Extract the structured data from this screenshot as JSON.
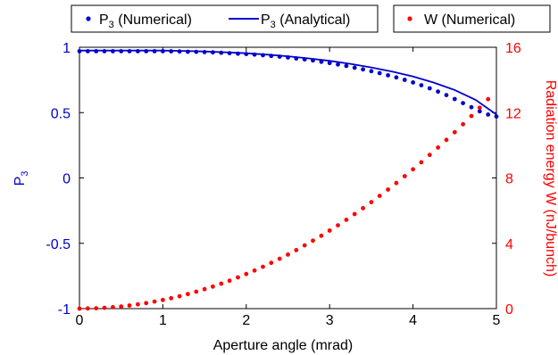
{
  "chart_data": {
    "type": "scatter",
    "xlabel": "Aperture angle (mrad)",
    "ylabel_left": "P",
    "ylabel_left_sub": "3",
    "ylabel_right": "Radiation energy W (nJ/bunch)",
    "xlim": [
      0,
      5
    ],
    "ylim_left": [
      -1,
      1
    ],
    "ylim_right": [
      0,
      16
    ],
    "x_ticks": [
      "0",
      "1",
      "2",
      "3",
      "4",
      "5"
    ],
    "y_left_ticks": [
      "-1",
      "-0.5",
      "0",
      "0.5",
      "1"
    ],
    "y_right_ticks": [
      "0",
      "4",
      "8",
      "12",
      "16"
    ],
    "grid": false,
    "colors": {
      "left_axis": "#0000cc",
      "right_axis": "#ff0000",
      "p3": "#0000cc",
      "w": "#ff0000"
    },
    "legend": [
      {
        "prefix": "P",
        "sub": "3",
        "suffix": " (Numerical)",
        "marker": "dot",
        "color": "#0000cc"
      },
      {
        "prefix": "P",
        "sub": "3",
        "suffix": " (Analytical)",
        "marker": "line",
        "color": "#0000cc"
      },
      {
        "prefix": "W (Numerical)",
        "sub": "",
        "suffix": "",
        "marker": "dot",
        "color": "#ff0000"
      }
    ],
    "series": [
      {
        "name": "P3 (Numerical)",
        "axis": "left",
        "style": "dots",
        "x": [
          0.0,
          0.1,
          0.2,
          0.3,
          0.4,
          0.5,
          0.6,
          0.7,
          0.8,
          0.9,
          1.0,
          1.1,
          1.2,
          1.3,
          1.4,
          1.5,
          1.6,
          1.7,
          1.8,
          1.9,
          2.0,
          2.1,
          2.2,
          2.3,
          2.4,
          2.5,
          2.6,
          2.7,
          2.8,
          2.9,
          3.0,
          3.1,
          3.2,
          3.3,
          3.4,
          3.5,
          3.6,
          3.7,
          3.8,
          3.9,
          4.0,
          4.1,
          4.2,
          4.3,
          4.4,
          4.5,
          4.6,
          4.7,
          4.8,
          4.9,
          5.0
        ],
        "y": [
          0.97,
          0.97,
          0.97,
          0.97,
          0.97,
          0.97,
          0.97,
          0.97,
          0.97,
          0.97,
          0.97,
          0.969,
          0.968,
          0.966,
          0.965,
          0.963,
          0.961,
          0.958,
          0.955,
          0.951,
          0.948,
          0.944,
          0.939,
          0.934,
          0.928,
          0.922,
          0.915,
          0.907,
          0.899,
          0.889,
          0.879,
          0.868,
          0.857,
          0.844,
          0.831,
          0.817,
          0.802,
          0.786,
          0.769,
          0.751,
          0.731,
          0.709,
          0.686,
          0.661,
          0.634,
          0.604,
          0.573,
          0.541,
          0.51,
          0.485,
          0.47
        ]
      },
      {
        "name": "P3 (Analytical)",
        "axis": "left",
        "style": "line",
        "x": [
          0.0,
          0.25,
          0.5,
          0.75,
          1.0,
          1.25,
          1.5,
          1.75,
          2.0,
          2.25,
          2.5,
          2.75,
          3.0,
          3.25,
          3.5,
          3.75,
          4.0,
          4.25,
          4.5,
          4.75,
          5.0
        ],
        "y": [
          0.975,
          0.975,
          0.975,
          0.975,
          0.975,
          0.972,
          0.968,
          0.962,
          0.954,
          0.944,
          0.931,
          0.915,
          0.896,
          0.873,
          0.846,
          0.814,
          0.776,
          0.73,
          0.673,
          0.598,
          0.485
        ]
      },
      {
        "name": "W (Numerical)",
        "axis": "right",
        "style": "dots",
        "x": [
          0.0,
          0.1,
          0.2,
          0.3,
          0.4,
          0.5,
          0.6,
          0.7,
          0.8,
          0.9,
          1.0,
          1.1,
          1.2,
          1.3,
          1.4,
          1.5,
          1.6,
          1.7,
          1.8,
          1.9,
          2.0,
          2.1,
          2.2,
          2.3,
          2.4,
          2.5,
          2.6,
          2.7,
          2.8,
          2.9,
          3.0,
          3.1,
          3.2,
          3.3,
          3.4,
          3.5,
          3.6,
          3.7,
          3.8,
          3.9,
          4.0,
          4.1,
          4.2,
          4.3,
          4.4,
          4.5,
          4.6,
          4.7,
          4.8,
          4.9
        ],
        "y": [
          0.0,
          0.01,
          0.02,
          0.05,
          0.09,
          0.13,
          0.19,
          0.26,
          0.34,
          0.43,
          0.53,
          0.64,
          0.76,
          0.89,
          1.04,
          1.19,
          1.35,
          1.53,
          1.71,
          1.91,
          2.12,
          2.33,
          2.56,
          2.8,
          3.05,
          3.31,
          3.58,
          3.87,
          4.16,
          4.46,
          4.78,
          5.1,
          5.44,
          5.79,
          6.15,
          6.52,
          6.9,
          7.29,
          7.69,
          8.11,
          8.53,
          8.96,
          9.41,
          9.86,
          10.33,
          10.8,
          11.29,
          11.79,
          12.3,
          12.82
        ]
      }
    ]
  }
}
